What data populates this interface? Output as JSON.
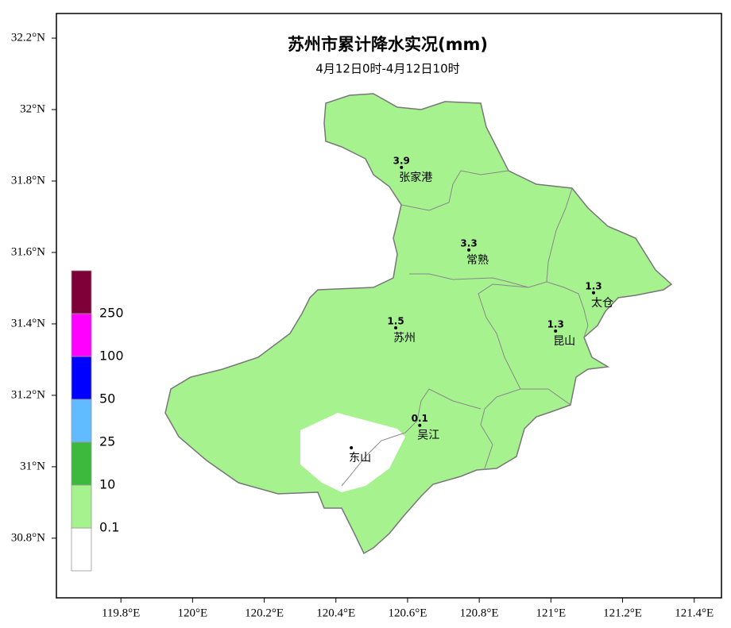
{
  "chart_data": {
    "type": "map",
    "title": "苏州市累计降水实况(mm)",
    "subtitle": "4月12日0时-4月12日10时",
    "xlim": [
      119.62,
      121.476
    ],
    "ylim": [
      30.633,
      32.269
    ],
    "xticks": [
      {
        "value": 119.8,
        "label": "119.8°E"
      },
      {
        "value": 120,
        "label": "120°E"
      },
      {
        "value": 120.2,
        "label": "120.2°E"
      },
      {
        "value": 120.4,
        "label": "120.4°E"
      },
      {
        "value": 120.6,
        "label": "120.6°E"
      },
      {
        "value": 120.8,
        "label": "120.8°E"
      },
      {
        "value": 121,
        "label": "121°E"
      },
      {
        "value": 121.2,
        "label": "121.2°E"
      },
      {
        "value": 121.4,
        "label": "121.4°E"
      }
    ],
    "yticks": [
      {
        "value": 32.2,
        "label": "32.2°N"
      },
      {
        "value": 32,
        "label": "32°N"
      },
      {
        "value": 31.8,
        "label": "31.8°N"
      },
      {
        "value": 31.6,
        "label": "31.6°N"
      },
      {
        "value": 31.4,
        "label": "31.4°N"
      },
      {
        "value": 31.2,
        "label": "31.2°N"
      },
      {
        "value": 31,
        "label": "31°N"
      },
      {
        "value": 30.8,
        "label": "30.8°N"
      }
    ],
    "stations": [
      {
        "name": "张家港",
        "lon": 120.583,
        "lat": 31.838,
        "value": 3.9
      },
      {
        "name": "常熟",
        "lon": 120.771,
        "lat": 31.607,
        "value": 3.3
      },
      {
        "name": "太仓",
        "lon": 121.119,
        "lat": 31.487,
        "value": 1.3
      },
      {
        "name": "昆山",
        "lon": 121.013,
        "lat": 31.38,
        "value": 1.3
      },
      {
        "name": "苏州",
        "lon": 120.567,
        "lat": 31.389,
        "value": 1.5
      },
      {
        "name": "吴江",
        "lon": 120.634,
        "lat": 31.116,
        "value": 0.1
      },
      {
        "name": "东山",
        "lon": 120.443,
        "lat": 31.053
      }
    ],
    "legend": {
      "levels": [
        0.1,
        10,
        25,
        50,
        100,
        250
      ],
      "colors": [
        "#ffffff",
        "#a6f28f",
        "#3dba3d",
        "#61bbff",
        "#0000ff",
        "#ff00ff",
        "#7e0038"
      ]
    }
  }
}
